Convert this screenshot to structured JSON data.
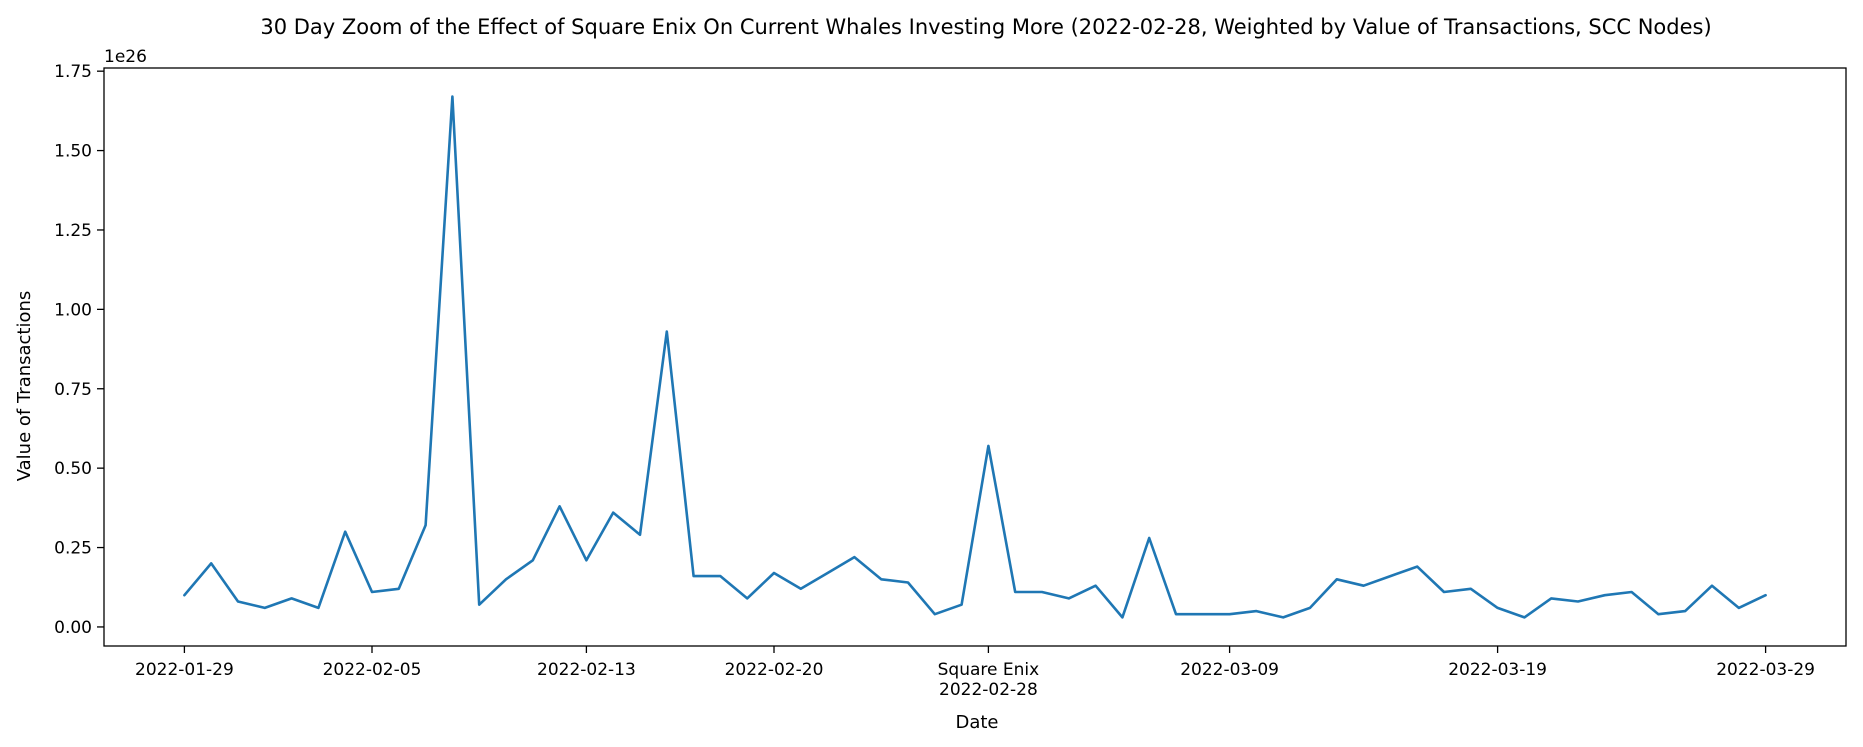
{
  "chart_data": {
    "type": "line",
    "title": "30 Day Zoom of the Effect of Square Enix On Current Whales Investing More (2022-02-28, Weighted by Value of Transactions, SCC Nodes)",
    "xlabel": "Date",
    "ylabel": "Value of Transactions",
    "y_offset_label": "1e26",
    "y_scale_factor": 1e+26,
    "ylim": [
      -0.06,
      1.76
    ],
    "xlim": [
      "2022-01-26",
      "2022-04-01"
    ],
    "grid": false,
    "color": "#1f77b4",
    "x_ticks": [
      {
        "value": "2022-01-29",
        "label": "2022-01-29"
      },
      {
        "value": "2022-02-05",
        "label": "2022-02-05"
      },
      {
        "value": "2022-02-13",
        "label": "2022-02-13"
      },
      {
        "value": "2022-02-20",
        "label": "2022-02-20"
      },
      {
        "value": "2022-02-28",
        "label": "Square Enix\n2022-02-28"
      },
      {
        "value": "2022-03-09",
        "label": "2022-03-09"
      },
      {
        "value": "2022-03-19",
        "label": "2022-03-19"
      },
      {
        "value": "2022-03-29",
        "label": "2022-03-29"
      }
    ],
    "y_ticks": [
      {
        "value": 0.0,
        "label": "0.00"
      },
      {
        "value": 0.25,
        "label": "0.25"
      },
      {
        "value": 0.5,
        "label": "0.50"
      },
      {
        "value": 0.75,
        "label": "0.75"
      },
      {
        "value": 1.0,
        "label": "1.00"
      },
      {
        "value": 1.25,
        "label": "1.25"
      },
      {
        "value": 1.5,
        "label": "1.50"
      },
      {
        "value": 1.75,
        "label": "1.75"
      }
    ],
    "series": [
      {
        "x": [
          "2022-01-29",
          "2022-01-30",
          "2022-01-31",
          "2022-02-01",
          "2022-02-02",
          "2022-02-03",
          "2022-02-04",
          "2022-02-05",
          "2022-02-06",
          "2022-02-07",
          "2022-02-08",
          "2022-02-09",
          "2022-02-10",
          "2022-02-11",
          "2022-02-12",
          "2022-02-13",
          "2022-02-14",
          "2022-02-15",
          "2022-02-16",
          "2022-02-17",
          "2022-02-18",
          "2022-02-19",
          "2022-02-20",
          "2022-02-21",
          "2022-02-22",
          "2022-02-23",
          "2022-02-24",
          "2022-02-25",
          "2022-02-26",
          "2022-02-27",
          "2022-02-28",
          "2022-03-01",
          "2022-03-02",
          "2022-03-03",
          "2022-03-04",
          "2022-03-05",
          "2022-03-06",
          "2022-03-07",
          "2022-03-08",
          "2022-03-09",
          "2022-03-10",
          "2022-03-11",
          "2022-03-12",
          "2022-03-13",
          "2022-03-14",
          "2022-03-15",
          "2022-03-16",
          "2022-03-17",
          "2022-03-18",
          "2022-03-19",
          "2022-03-20",
          "2022-03-21",
          "2022-03-22",
          "2022-03-23",
          "2022-03-24",
          "2022-03-25",
          "2022-03-26",
          "2022-03-27",
          "2022-03-28",
          "2022-03-29"
        ],
        "y": [
          0.1,
          0.2,
          0.08,
          0.06,
          0.09,
          0.06,
          0.3,
          0.11,
          0.12,
          0.32,
          1.67,
          0.07,
          0.15,
          0.21,
          0.38,
          0.21,
          0.36,
          0.29,
          0.93,
          0.16,
          0.16,
          0.09,
          0.17,
          0.12,
          0.17,
          0.22,
          0.15,
          0.14,
          0.04,
          0.07,
          0.57,
          0.11,
          0.11,
          0.09,
          0.13,
          0.03,
          0.28,
          0.04,
          0.04,
          0.04,
          0.05,
          0.03,
          0.06,
          0.15,
          0.13,
          0.16,
          0.19,
          0.11,
          0.12,
          0.06,
          0.03,
          0.09,
          0.08,
          0.1,
          0.11,
          0.04,
          0.05,
          0.13,
          0.06,
          0.1
        ]
      }
    ]
  }
}
